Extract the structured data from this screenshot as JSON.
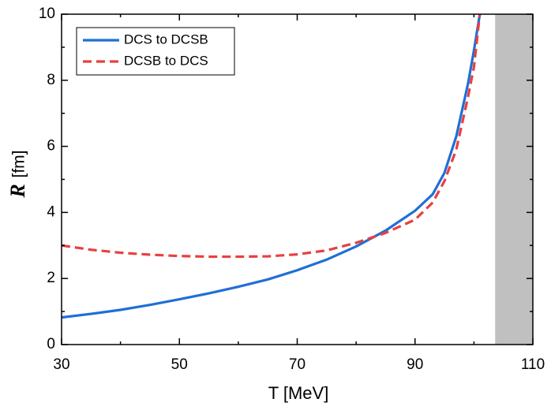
{
  "chart_data": {
    "type": "line",
    "xlabel": "T [MeV]",
    "ylabel_symbol": "R",
    "ylabel_unit": "[fm]",
    "x": [
      30,
      35,
      40,
      45,
      50,
      55,
      60,
      65,
      70,
      75,
      80,
      85,
      90,
      93,
      95,
      97,
      99,
      100,
      101
    ],
    "series": [
      {
        "name": "DCS to DCSB",
        "color": "#1f6fd6",
        "dash": "solid",
        "values": [
          0.82,
          0.93,
          1.05,
          1.2,
          1.37,
          1.55,
          1.75,
          1.97,
          2.25,
          2.57,
          2.97,
          3.45,
          4.05,
          4.55,
          5.2,
          6.3,
          7.9,
          8.9,
          10
        ]
      },
      {
        "name": "DCSB to DCS",
        "color": "#e8403f",
        "dash": "dashed",
        "values": [
          3.0,
          2.87,
          2.78,
          2.72,
          2.68,
          2.66,
          2.66,
          2.67,
          2.73,
          2.85,
          3.08,
          3.38,
          3.78,
          4.3,
          4.95,
          5.9,
          7.5,
          8.4,
          10
        ]
      }
    ],
    "shaded_region": [
      103.6,
      110
    ],
    "shaded_color": "#c0c0c0",
    "xlim": [
      30,
      110
    ],
    "xticks": [
      30,
      50,
      70,
      90,
      110
    ],
    "xminorticks": [
      40,
      60,
      80,
      100
    ],
    "ylim": [
      0,
      10
    ],
    "yticks": [
      0,
      2,
      4,
      6,
      8,
      10
    ],
    "yminorticks": [
      1,
      3,
      5,
      7,
      9
    ],
    "legend": "upper left"
  }
}
